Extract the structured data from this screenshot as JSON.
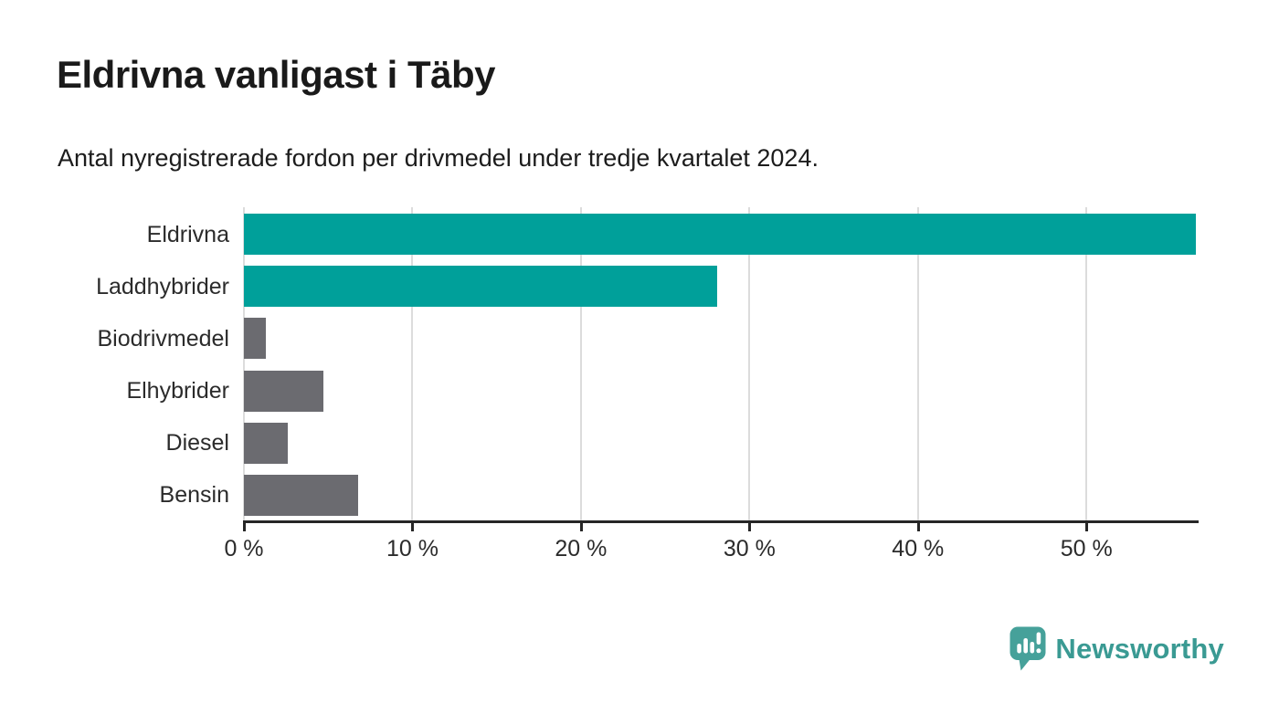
{
  "header": {
    "title": "Eldrivna vanligast i Täby",
    "subtitle": "Antal nyregistrerade fordon per drivmedel under tredje kvartalet 2024."
  },
  "chart_data": {
    "type": "bar",
    "orientation": "horizontal",
    "title": "Eldrivna vanligast i Täby",
    "subtitle": "Antal nyregistrerade fordon per drivmedel under tredje kvartalet 2024.",
    "categories": [
      "Eldrivna",
      "Laddhybrider",
      "Biodrivmedel",
      "Elhybrider",
      "Diesel",
      "Bensin"
    ],
    "values": [
      56.5,
      28.1,
      1.3,
      4.7,
      2.6,
      6.8
    ],
    "unit": "%",
    "xlim": [
      0,
      56.6
    ],
    "x_ticks": [
      0,
      10,
      20,
      30,
      40,
      50
    ],
    "x_tick_labels": [
      "0 %",
      "10 %",
      "20 %",
      "30 %",
      "40 %",
      "50 %"
    ],
    "bar_colors": [
      "#00a09a",
      "#00a09a",
      "#6b6b70",
      "#6b6b70",
      "#6b6b70",
      "#6b6b70"
    ],
    "highlight_color": "#00a09a",
    "default_color": "#6b6b70",
    "grid": "vertical-gridlines",
    "legend": "none",
    "xlabel": "",
    "ylabel": ""
  },
  "branding": {
    "logo_text": "Newsworthy",
    "logo_text_color": "#3a9a93",
    "icon_color": "#46a19a"
  }
}
